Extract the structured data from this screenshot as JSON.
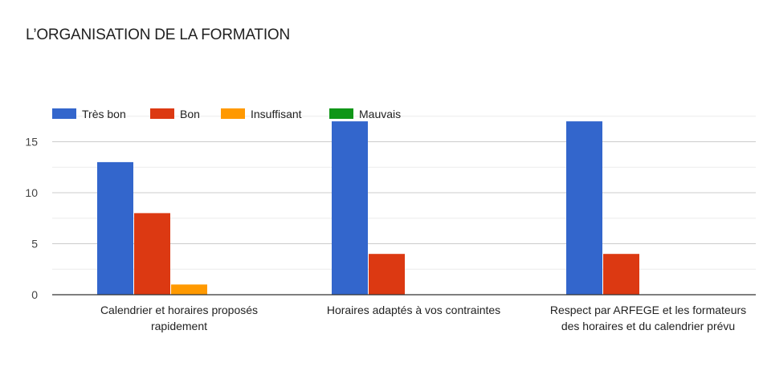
{
  "chart_data": {
    "type": "bar",
    "title": "L’ORGANISATION DE LA FORMATION",
    "xlabel": "",
    "ylabel": "",
    "ylim": [
      0,
      17.5
    ],
    "yticks": [
      0,
      5,
      10,
      15
    ],
    "grid": true,
    "legend_position": "top-left",
    "categories": [
      [
        "Calendrier et horaires proposés",
        "rapidement"
      ],
      [
        "Horaires adaptés à vos contraintes"
      ],
      [
        "Respect par ARFEGE et les formateurs",
        "des horaires et du calendrier prévu"
      ]
    ],
    "series": [
      {
        "name": "Très bon",
        "color": "#3366cc",
        "values": [
          13,
          17,
          17
        ]
      },
      {
        "name": "Bon",
        "color": "#dc3912",
        "values": [
          8,
          4,
          4
        ]
      },
      {
        "name": "Insuffisant",
        "color": "#ff9900",
        "values": [
          1,
          0,
          0
        ]
      },
      {
        "name": "Mauvais",
        "color": "#109618",
        "values": [
          0,
          0,
          0
        ]
      }
    ]
  }
}
